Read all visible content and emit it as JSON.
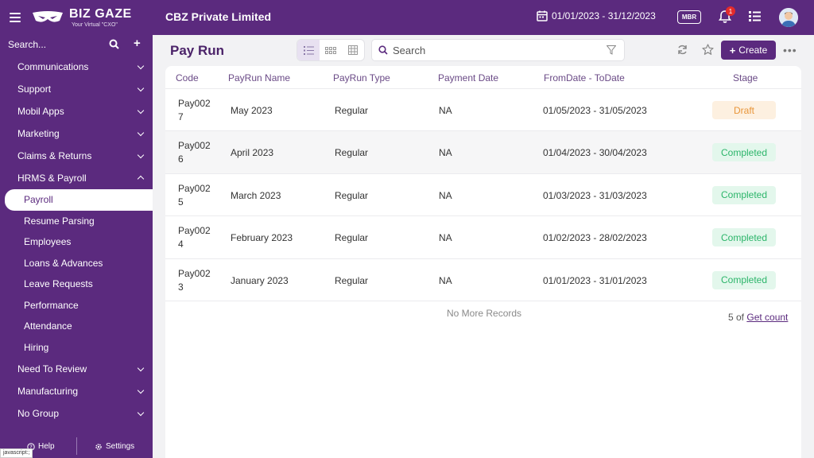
{
  "topbar": {
    "logo_main": "BIZ GAZE",
    "logo_tag": "Your Virtual \"CXO\"",
    "company": "CBZ Private Limited",
    "date_range": "01/01/2023 - 31/12/2023",
    "mbr_label": "MBR",
    "notification_count": "1"
  },
  "sidebar": {
    "search_label": "Search...",
    "menu": [
      {
        "label": "Communications"
      },
      {
        "label": "Support"
      },
      {
        "label": "Mobil Apps"
      },
      {
        "label": "Marketing"
      },
      {
        "label": "Claims & Returns"
      },
      {
        "label": "HRMS & Payroll"
      }
    ],
    "submenu": [
      {
        "label": "Payroll"
      },
      {
        "label": "Resume Parsing"
      },
      {
        "label": "Employees"
      },
      {
        "label": "Loans & Advances"
      },
      {
        "label": "Leave Requests"
      },
      {
        "label": "Performance"
      },
      {
        "label": "Attendance"
      },
      {
        "label": "Hiring"
      }
    ],
    "menu_after": [
      {
        "label": "Need To Review"
      },
      {
        "label": "Manufacturing"
      },
      {
        "label": "No Group"
      }
    ],
    "help_label": "Help",
    "settings_label": "Settings",
    "status_text": "javascript:;"
  },
  "page": {
    "title": "Pay Run",
    "search_placeholder": "Search",
    "create_label": "Create"
  },
  "table": {
    "headers": [
      "Code",
      "PayRun Name",
      "PayRun Type",
      "Payment Date",
      "FromDate - ToDate",
      "Stage"
    ],
    "rows": [
      {
        "code": "Pay0027",
        "name": "May 2023",
        "type": "Regular",
        "payment_date": "NA",
        "range": "01/05/2023 - 31/05/2023",
        "stage": "Draft"
      },
      {
        "code": "Pay0026",
        "name": "April 2023",
        "type": "Regular",
        "payment_date": "NA",
        "range": "01/04/2023 - 30/04/2023",
        "stage": "Completed"
      },
      {
        "code": "Pay0025",
        "name": "March 2023",
        "type": "Regular",
        "payment_date": "NA",
        "range": "01/03/2023 - 31/03/2023",
        "stage": "Completed"
      },
      {
        "code": "Pay0024",
        "name": "February 2023",
        "type": "Regular",
        "payment_date": "NA",
        "range": "01/02/2023 - 28/02/2023",
        "stage": "Completed"
      },
      {
        "code": "Pay0023",
        "name": "January 2023",
        "type": "Regular",
        "payment_date": "NA",
        "range": "01/01/2023 - 31/01/2023",
        "stage": "Completed"
      }
    ],
    "no_more": "No More Records",
    "count_prefix": "5 of",
    "count_link": "Get count"
  }
}
